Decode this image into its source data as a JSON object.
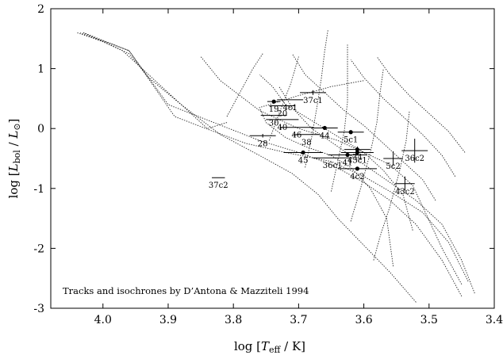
{
  "chart_data": {
    "type": "scatter",
    "xlabel": "log [T_eff / K]",
    "ylabel": "log [L_bol / L_⊙]",
    "xlim": [
      4.08,
      3.4
    ],
    "ylim": [
      -3,
      2
    ],
    "x_ticks": [
      "4.0",
      "3.9",
      "3.8",
      "3.7",
      "3.6",
      "3.5",
      "3.4"
    ],
    "y_ticks": [
      "2",
      "1",
      "0",
      "-1",
      "-2",
      "-3"
    ],
    "annotation": "Tracks and isochrones by D’Antona & Mazziteli 1994",
    "points": [
      {
        "label": "19",
        "x": 3.738,
        "y": 0.45,
        "xerr": 0.01,
        "yerr": 0,
        "filled": true
      },
      {
        "label": "4c1",
        "x": 3.713,
        "y": 0.48,
        "xerr": 0.02,
        "yerr": 0,
        "filled": false
      },
      {
        "label": "20",
        "x": 3.725,
        "y": 0.38,
        "xerr": 0.02,
        "yerr": 0,
        "filled": false
      },
      {
        "label": "37c1",
        "x": 3.678,
        "y": 0.6,
        "xerr": 0.02,
        "yerr": 0.04,
        "filled": false
      },
      {
        "label": "30",
        "x": 3.738,
        "y": 0.22,
        "xerr": 0.02,
        "yerr": 0,
        "filled": false
      },
      {
        "label": "40",
        "x": 3.725,
        "y": 0.15,
        "xerr": 0.025,
        "yerr": 0,
        "filled": false
      },
      {
        "label": "46",
        "x": 3.703,
        "y": 0.02,
        "xerr": 0.025,
        "yerr": 0,
        "filled": false
      },
      {
        "label": "44",
        "x": 3.66,
        "y": 0.01,
        "xerr": 0.02,
        "yerr": 0,
        "filled": true
      },
      {
        "label": "5c1",
        "x": 3.62,
        "y": -0.06,
        "xerr": 0.02,
        "yerr": 0.03,
        "filled": true
      },
      {
        "label": "38",
        "x": 3.688,
        "y": -0.1,
        "xerr": 0.02,
        "yerr": 0,
        "filled": false
      },
      {
        "label": "28",
        "x": 3.755,
        "y": -0.12,
        "xerr": 0.02,
        "yerr": 0.03,
        "filled": false
      },
      {
        "label": "34",
        "x": 3.61,
        "y": -0.35,
        "xerr": 0.02,
        "yerr": 0.05,
        "filled": true
      },
      {
        "label": "45",
        "x": 3.693,
        "y": -0.4,
        "xerr": 0.03,
        "yerr": 0,
        "filled": true
      },
      {
        "label": "41",
        "x": 3.625,
        "y": -0.44,
        "xerr": 0.03,
        "yerr": 0,
        "filled": true
      },
      {
        "label": "43c1",
        "x": 3.61,
        "y": -0.4,
        "xerr": 0.025,
        "yerr": 0.05,
        "filled": true
      },
      {
        "label": "36c1",
        "x": 3.648,
        "y": -0.49,
        "xerr": 0.03,
        "yerr": 0,
        "filled": false
      },
      {
        "label": "36c2",
        "x": 3.522,
        "y": -0.37,
        "xerr": 0.02,
        "yerr": 0.2,
        "filled": false
      },
      {
        "label": "5c2",
        "x": 3.555,
        "y": -0.5,
        "xerr": 0.015,
        "yerr": 0.12,
        "filled": false
      },
      {
        "label": "4c2",
        "x": 3.61,
        "y": -0.67,
        "xerr": 0.03,
        "yerr": 0,
        "filled": true
      },
      {
        "label": "43c2",
        "x": 3.537,
        "y": -0.92,
        "xerr": 0.015,
        "yerr": 0.12,
        "filled": false
      },
      {
        "label": "37c2",
        "x": 3.823,
        "y": -0.82,
        "xerr": 0.01,
        "yerr": 0,
        "filled": false
      }
    ]
  }
}
